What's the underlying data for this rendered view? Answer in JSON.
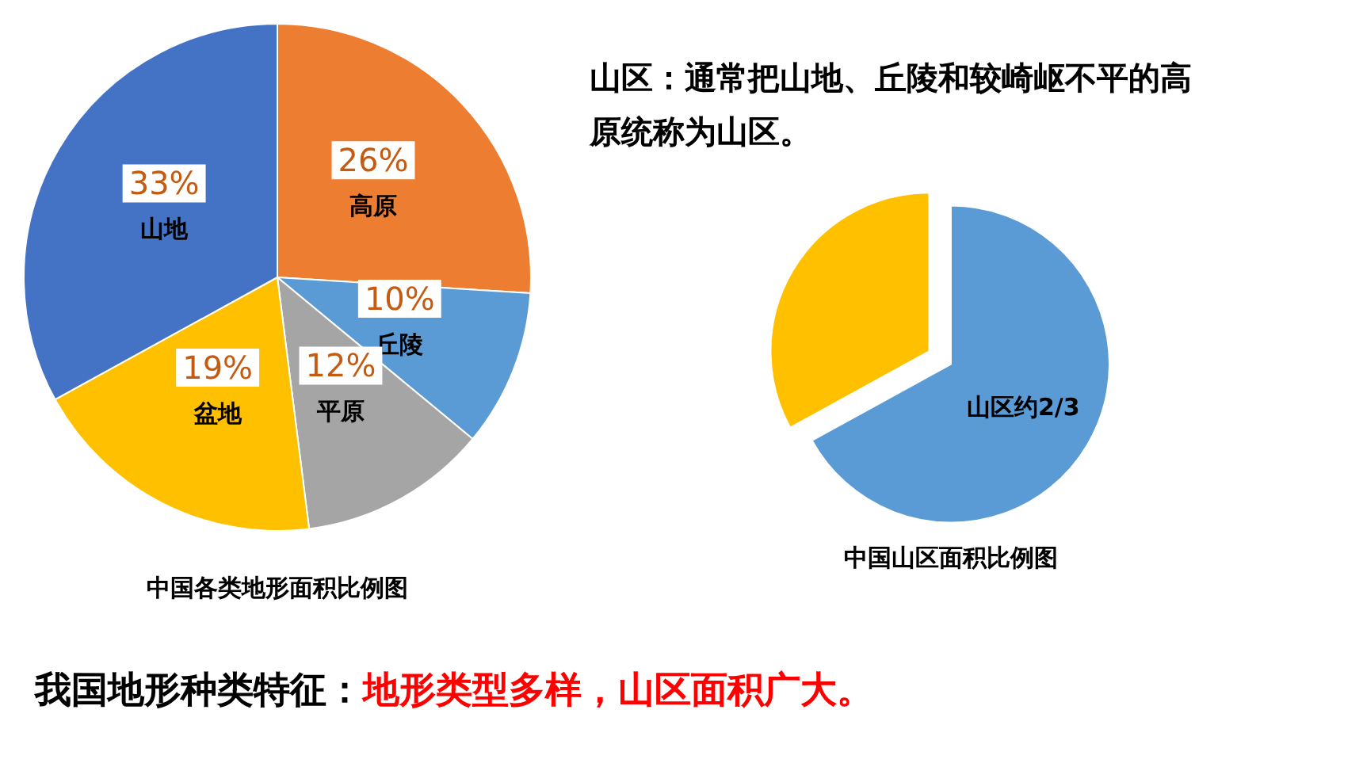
{
  "chart_data": [
    {
      "type": "pie",
      "title": "中国各类地形面积比例图",
      "categories": [
        "高原",
        "丘陵",
        "平原",
        "盆地",
        "山地"
      ],
      "values": [
        26,
        10,
        12,
        19,
        33
      ],
      "colors": [
        "#ed7d31",
        "#5b9bd5",
        "#a5a5a5",
        "#ffc000",
        "#4472c4"
      ],
      "value_labels": [
        "26%",
        "10%",
        "12%",
        "19%",
        "33%"
      ],
      "legend": false,
      "annotations": [
        "我国地形种类特征：",
        "地形类型多样，山区面积广大。"
      ]
    },
    {
      "type": "pie",
      "title": "中国山区面积比例图",
      "categories": [
        "山区约2/3",
        null
      ],
      "values": [
        67,
        33
      ],
      "colors": [
        "#5b9bd5",
        "#ffc000"
      ],
      "legend": false,
      "annotations": [
        "山区：通常把山地、丘陵和较崎岖不平的高原统称为山区。"
      ]
    }
  ]
}
